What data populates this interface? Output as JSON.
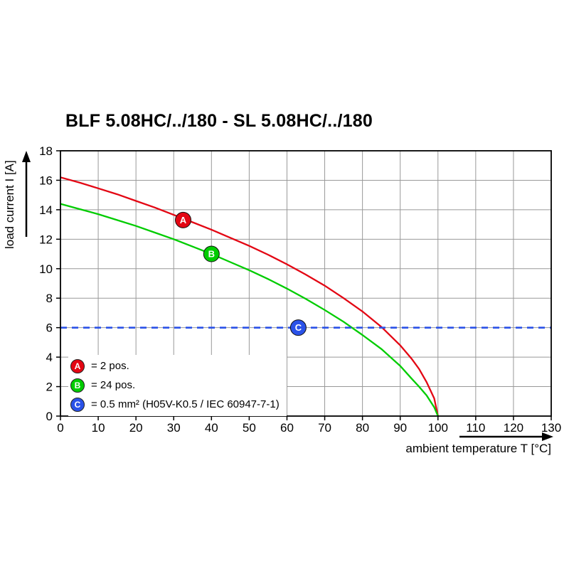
{
  "title": "BLF 5.08HC/../180 - SL 5.08HC/../180",
  "colors": {
    "red": "#e30613",
    "green": "#00cc00",
    "blue": "#2a52e8",
    "grid": "#999999",
    "axis": "#000000",
    "background": "#ffffff"
  },
  "chart_data": {
    "type": "line",
    "title": "BLF 5.08HC/../180 - SL 5.08HC/../180",
    "xlabel": "ambient temperature T [°C]",
    "ylabel": "load current I [A]",
    "xlim": [
      0,
      130
    ],
    "ylim": [
      0,
      18
    ],
    "x_ticks": [
      0,
      10,
      20,
      30,
      40,
      50,
      60,
      70,
      80,
      90,
      100,
      110,
      120,
      130
    ],
    "y_ticks": [
      0,
      2,
      4,
      6,
      8,
      10,
      12,
      14,
      16,
      18
    ],
    "grid": true,
    "series": [
      {
        "name": "A",
        "label": "= 2 pos.",
        "color": "#e30613",
        "style": "solid",
        "marker": {
          "letter": "A",
          "x": 32.5,
          "y": 13.3
        },
        "points": [
          [
            0,
            16.2
          ],
          [
            5,
            15.85
          ],
          [
            10,
            15.45
          ],
          [
            15,
            15.05
          ],
          [
            20,
            14.6
          ],
          [
            25,
            14.15
          ],
          [
            30,
            13.65
          ],
          [
            35,
            13.15
          ],
          [
            40,
            12.65
          ],
          [
            45,
            12.1
          ],
          [
            50,
            11.55
          ],
          [
            55,
            10.95
          ],
          [
            60,
            10.3
          ],
          [
            65,
            9.6
          ],
          [
            70,
            8.85
          ],
          [
            75,
            8.0
          ],
          [
            80,
            7.1
          ],
          [
            85,
            6.05
          ],
          [
            90,
            4.8
          ],
          [
            93,
            3.9
          ],
          [
            95,
            3.2
          ],
          [
            97,
            2.3
          ],
          [
            99,
            1.2
          ],
          [
            100,
            0
          ]
        ]
      },
      {
        "name": "B",
        "label": "= 24 pos.",
        "color": "#00cc00",
        "style": "solid",
        "marker": {
          "letter": "B",
          "x": 40,
          "y": 11.0
        },
        "points": [
          [
            0,
            14.4
          ],
          [
            5,
            14.05
          ],
          [
            10,
            13.7
          ],
          [
            15,
            13.3
          ],
          [
            20,
            12.9
          ],
          [
            25,
            12.45
          ],
          [
            30,
            12.0
          ],
          [
            35,
            11.5
          ],
          [
            40,
            11.0
          ],
          [
            45,
            10.45
          ],
          [
            50,
            9.9
          ],
          [
            55,
            9.3
          ],
          [
            60,
            8.65
          ],
          [
            65,
            7.95
          ],
          [
            70,
            7.2
          ],
          [
            75,
            6.4
          ],
          [
            80,
            5.5
          ],
          [
            85,
            4.55
          ],
          [
            90,
            3.4
          ],
          [
            93,
            2.55
          ],
          [
            95,
            2.0
          ],
          [
            97,
            1.4
          ],
          [
            99,
            0.6
          ],
          [
            100,
            0
          ]
        ]
      },
      {
        "name": "C",
        "label": "= 0.5 mm² (H05V-K0.5 / IEC 60947-7-1)",
        "color": "#2a52e8",
        "style": "dashed",
        "marker": {
          "letter": "C",
          "x": 63,
          "y": 6.0
        },
        "points": [
          [
            0,
            6
          ],
          [
            130,
            6
          ]
        ]
      }
    ],
    "legend": {
      "position": "bottom-left",
      "items": [
        {
          "letter": "A",
          "label": "= 2 pos.",
          "color": "#e30613"
        },
        {
          "letter": "B",
          "label": "= 24 pos.",
          "color": "#00cc00"
        },
        {
          "letter": "C",
          "label": "= 0.5 mm² (H05V-K0.5 / IEC 60947-7-1)",
          "color": "#2a52e8"
        }
      ]
    }
  }
}
